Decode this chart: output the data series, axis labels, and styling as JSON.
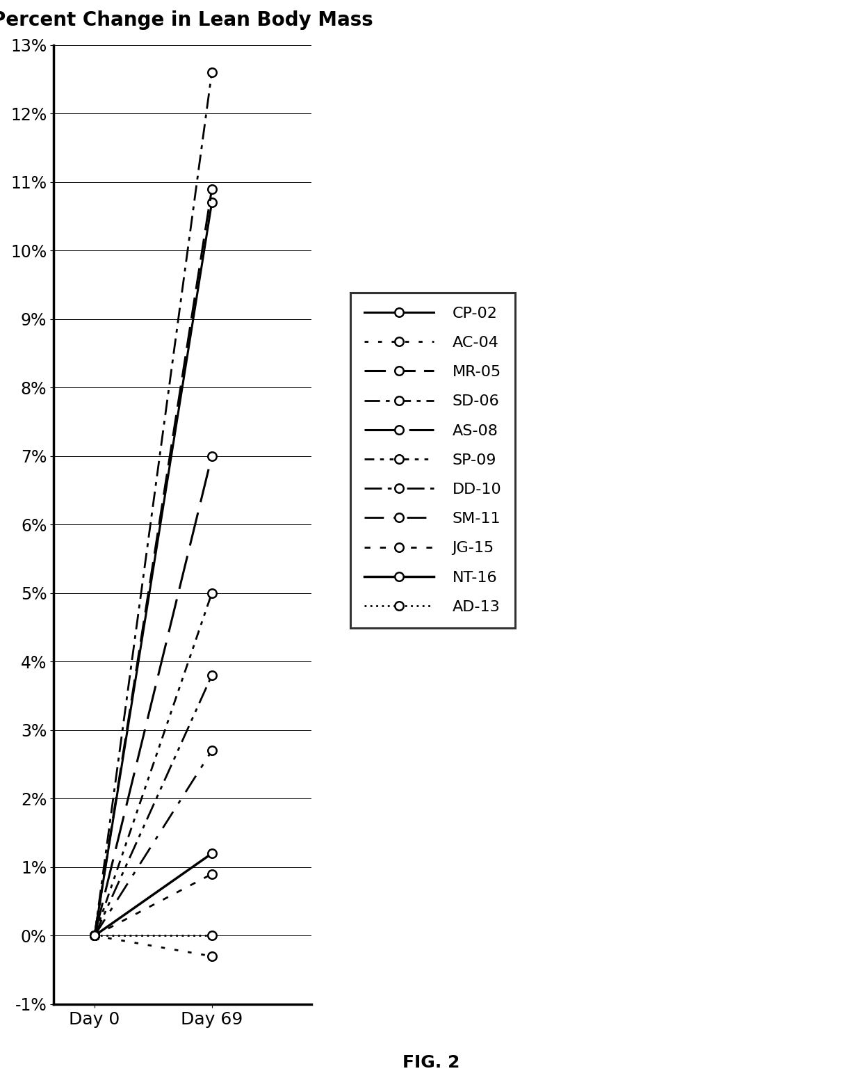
{
  "title": "Percent Change in Lean Body Mass",
  "fig_label": "FIG. 2",
  "x_labels": [
    "Day 0",
    "Day 69"
  ],
  "ylim": [
    -0.01,
    0.13
  ],
  "series": [
    {
      "label": "CP-02",
      "day0": 0.0,
      "day69": 0.107,
      "style_key": "solid"
    },
    {
      "label": "AC-04",
      "day0": 0.0,
      "day69": -0.003,
      "style_key": "dotted_coarse"
    },
    {
      "label": "MR-05",
      "day0": 0.0,
      "day69": 0.109,
      "style_key": "long_dash"
    },
    {
      "label": "SD-06",
      "day0": 0.0,
      "day69": 0.126,
      "style_key": "dash_dot"
    },
    {
      "label": "AS-08",
      "day0": 0.0,
      "day69": 0.07,
      "style_key": "long_dash2"
    },
    {
      "label": "SP-09",
      "day0": 0.0,
      "day69": 0.05,
      "style_key": "dash_dot_dot"
    },
    {
      "label": "DD-10",
      "day0": 0.0,
      "day69": 0.038,
      "style_key": "dash_dot_dot2"
    },
    {
      "label": "SM-11",
      "day0": 0.0,
      "day69": 0.027,
      "style_key": "dash_space_dot"
    },
    {
      "label": "JG-15",
      "day0": 0.0,
      "day69": 0.009,
      "style_key": "dotted_fine"
    },
    {
      "label": "NT-16",
      "day0": 0.0,
      "day69": 0.012,
      "style_key": "long_dash3"
    },
    {
      "label": "AD-13",
      "day0": 0.0,
      "day69": 0.0,
      "style_key": "dotted_dense"
    }
  ],
  "ytick_vals": [
    -0.01,
    0.0,
    0.01,
    0.02,
    0.03,
    0.04,
    0.05,
    0.06,
    0.07,
    0.08,
    0.09,
    0.1,
    0.11,
    0.12,
    0.13
  ],
  "ytick_labels": [
    "-1%",
    "0%",
    "1%",
    "2%",
    "3%",
    "4%",
    "5%",
    "6%",
    "7%",
    "8%",
    "9%",
    "10%",
    "11%",
    "12%",
    "13%"
  ],
  "title_fontsize": 20,
  "tick_fontsize": 17,
  "label_fontsize": 18,
  "legend_fontsize": 16
}
